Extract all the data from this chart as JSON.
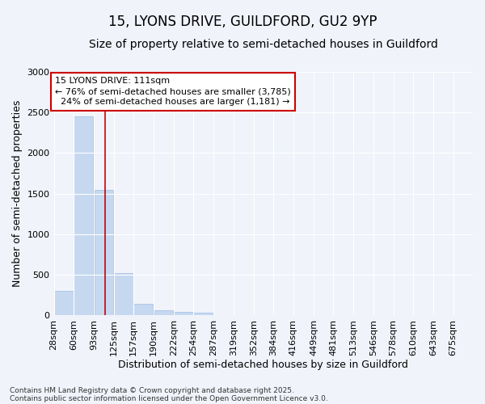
{
  "title1": "15, LYONS DRIVE, GUILDFORD, GU2 9YP",
  "title2": "Size of property relative to semi-detached houses in Guildford",
  "xlabel": "Distribution of semi-detached houses by size in Guildford",
  "ylabel": "Number of semi-detached properties",
  "footnote1": "Contains HM Land Registry data © Crown copyright and database right 2025.",
  "footnote2": "Contains public sector information licensed under the Open Government Licence v3.0.",
  "property_size": 111,
  "pct_smaller": 76,
  "count_smaller": 3785,
  "pct_larger": 24,
  "count_larger": 1181,
  "bin_labels": [
    "28sqm",
    "60sqm",
    "93sqm",
    "125sqm",
    "157sqm",
    "190sqm",
    "222sqm",
    "254sqm",
    "287sqm",
    "319sqm",
    "352sqm",
    "384sqm",
    "416sqm",
    "449sqm",
    "481sqm",
    "513sqm",
    "546sqm",
    "578sqm",
    "610sqm",
    "643sqm",
    "675sqm"
  ],
  "bin_starts": [
    28,
    60,
    93,
    125,
    157,
    190,
    222,
    254,
    287,
    319,
    352,
    384,
    416,
    449,
    481,
    513,
    546,
    578,
    610,
    643,
    675
  ],
  "bin_width": 32,
  "bar_values": [
    300,
    2450,
    1550,
    520,
    140,
    60,
    40,
    30,
    8,
    4,
    2,
    1,
    1,
    0,
    0,
    0,
    0,
    0,
    0,
    0
  ],
  "bar_color": "#c5d8f0",
  "bar_edge_color": "#a0bde0",
  "vline_color": "#cc0000",
  "vline_x": 111,
  "annotation_box_facecolor": "#ffffff",
  "annotation_border_color": "#cc0000",
  "background_color": "#f0f3fa",
  "plot_bg_color": "#f0f3fa",
  "ylim": [
    0,
    3000
  ],
  "yticks": [
    0,
    500,
    1000,
    1500,
    2000,
    2500,
    3000
  ],
  "grid_color": "#ffffff",
  "title1_fontsize": 12,
  "title2_fontsize": 10,
  "axis_label_fontsize": 9,
  "tick_fontsize": 8,
  "annotation_fontsize": 8,
  "footnote_fontsize": 6.5
}
